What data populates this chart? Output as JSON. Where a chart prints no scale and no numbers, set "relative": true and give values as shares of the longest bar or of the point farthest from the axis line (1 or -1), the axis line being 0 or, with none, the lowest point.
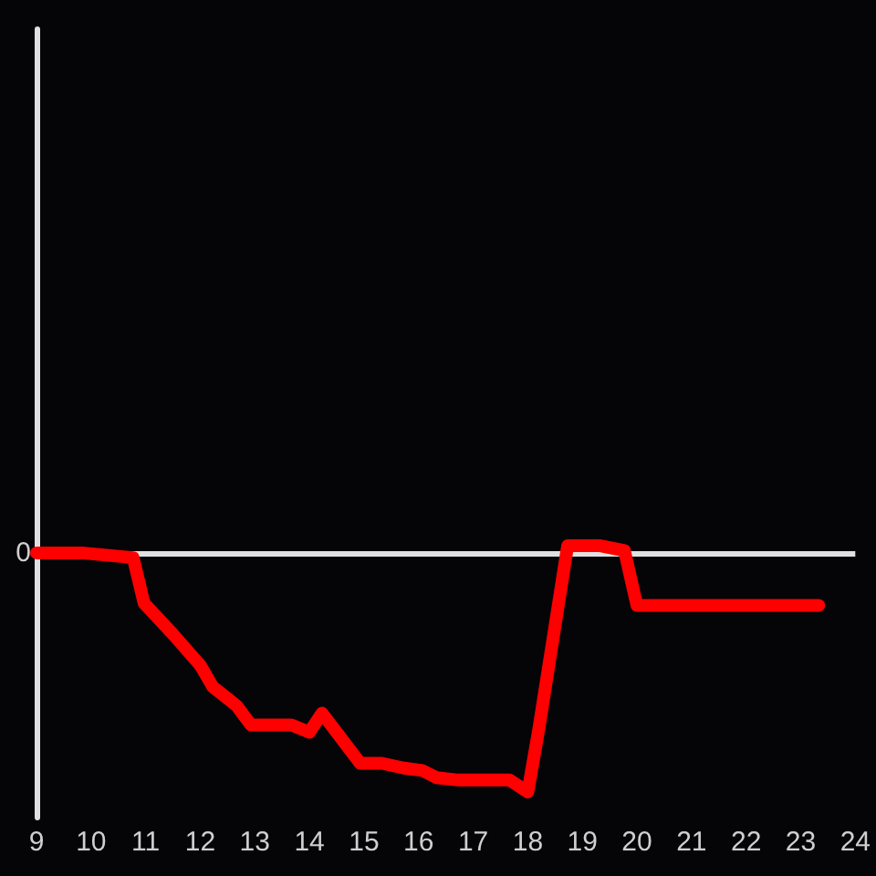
{
  "chart_data": {
    "type": "line",
    "relative": true,
    "x": [
      9,
      9.83,
      10.77,
      10.97,
      11.5,
      12.0,
      12.23,
      12.67,
      12.93,
      13.67,
      14.0,
      14.23,
      14.93,
      15.33,
      15.73,
      16.07,
      16.33,
      16.73,
      17.67,
      18.0,
      18.2,
      18.73,
      19.33,
      19.77,
      20.0,
      23.33
    ],
    "series": [
      {
        "color": "#ff0000",
        "values": [
          0,
          0,
          -0.02,
          -0.21,
          -0.34,
          -0.47,
          -0.56,
          -0.64,
          -0.72,
          -0.72,
          -0.75,
          -0.67,
          -0.88,
          -0.88,
          -0.9,
          -0.91,
          -0.94,
          -0.95,
          -0.95,
          -1,
          -0.74,
          0.03,
          0.03,
          0.01,
          -0.22,
          -0.22
        ]
      }
    ],
    "xlim": [
      9,
      24
    ],
    "xticks": [
      9,
      10,
      11,
      12,
      13,
      14,
      15,
      16,
      17,
      18,
      19,
      20,
      21,
      22,
      23,
      24
    ],
    "ref_lines": [
      {
        "axis": "y",
        "value": 0,
        "label": "0",
        "color": "#e0e0e0"
      }
    ],
    "line_style": "solid"
  }
}
